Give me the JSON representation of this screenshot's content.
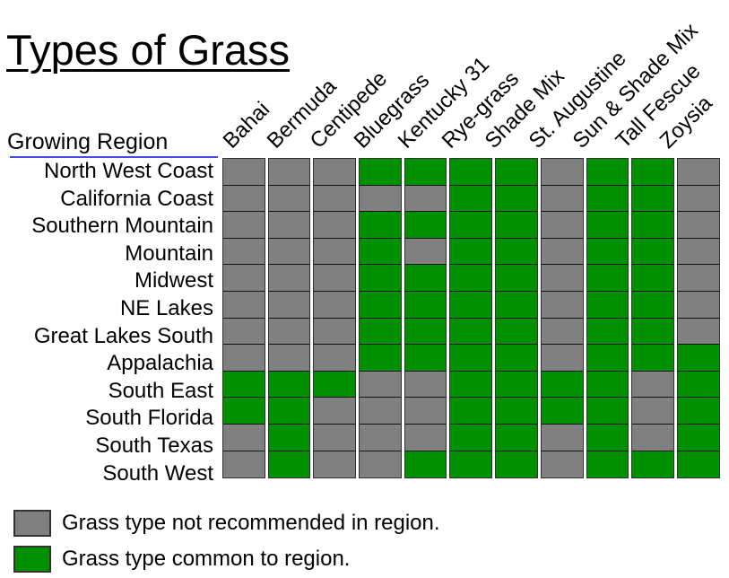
{
  "chart_data": {
    "type": "heatmap",
    "title": "Types of Grass",
    "row_header": "Growing Region",
    "columns": [
      "Bahai",
      "Bermuda",
      "Centipede",
      "Bluegrass",
      "Kentucky 31",
      "Rye-grass",
      "Shade Mix",
      "St. Augustine",
      "Sun & Shade Mix",
      "Tall Fescue",
      "Zoysia"
    ],
    "rows": [
      "North West Coast",
      "California Coast",
      "Southern Mountain",
      "Mountain",
      "Midwest",
      "NE Lakes",
      "Great Lakes South",
      "Appalachia",
      "South East",
      "South Florida",
      "South Texas",
      "South West"
    ],
    "values": [
      [
        0,
        0,
        0,
        1,
        1,
        1,
        1,
        0,
        1,
        1,
        0
      ],
      [
        0,
        0,
        0,
        0,
        0,
        1,
        1,
        0,
        1,
        1,
        0
      ],
      [
        0,
        0,
        0,
        1,
        1,
        1,
        1,
        0,
        1,
        1,
        0
      ],
      [
        0,
        0,
        0,
        1,
        0,
        1,
        1,
        0,
        1,
        1,
        0
      ],
      [
        0,
        0,
        0,
        1,
        1,
        1,
        1,
        0,
        1,
        1,
        0
      ],
      [
        0,
        0,
        0,
        1,
        1,
        1,
        1,
        0,
        1,
        1,
        0
      ],
      [
        0,
        0,
        0,
        1,
        1,
        1,
        1,
        0,
        1,
        1,
        0
      ],
      [
        0,
        0,
        0,
        1,
        1,
        1,
        1,
        0,
        1,
        1,
        1
      ],
      [
        1,
        1,
        1,
        0,
        0,
        1,
        1,
        1,
        1,
        0,
        1
      ],
      [
        1,
        1,
        0,
        0,
        0,
        1,
        1,
        1,
        1,
        0,
        1
      ],
      [
        0,
        1,
        0,
        0,
        0,
        1,
        1,
        0,
        1,
        0,
        1
      ],
      [
        0,
        1,
        0,
        0,
        1,
        1,
        1,
        0,
        1,
        1,
        1
      ]
    ],
    "value_legend": {
      "0": "Grass type not recommended in region.",
      "1": "Grass type common to region."
    },
    "colors": {
      "0": "#808080",
      "1": "#009000"
    },
    "grid": true,
    "legend_position": "bottom-left"
  },
  "legend": [
    {
      "label": "Grass type not recommended in region.",
      "color": "#808080"
    },
    {
      "label": "Grass type common to region.",
      "color": "#009000"
    }
  ]
}
